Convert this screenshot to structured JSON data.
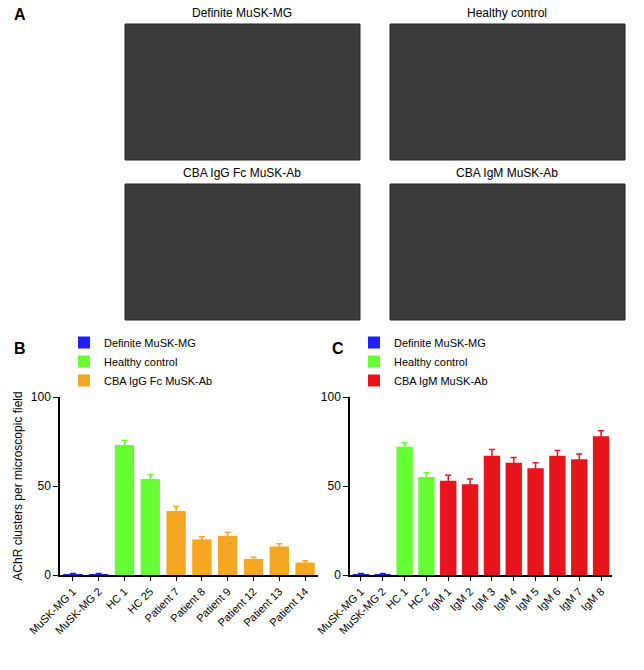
{
  "panel_a": {
    "label": "A",
    "images": [
      "Definite MuSK-MG",
      "Healthy control",
      "CBA IgG Fc MuSK-Ab",
      "CBA IgM MuSK-Ab"
    ]
  },
  "chart_data": [
    {
      "type": "bar",
      "annotations": [
        "B"
      ],
      "ylabel": "AChR clusters per microscopic field",
      "categories": [
        "MuSK-MG 1",
        "MuSK-MG 2",
        "HC 1",
        "HC 25",
        "Patient 7",
        "Patient 8",
        "Patient 9",
        "Patient 12",
        "Patient 13",
        "Patient 14"
      ],
      "series": [
        {
          "name": "Definite MuSK-MG",
          "color": "#1f1fff",
          "values": [
            0.5,
            0.5,
            null,
            null,
            null,
            null,
            null,
            null,
            null,
            null
          ],
          "errors": [
            0.3,
            0.3,
            null,
            null,
            null,
            null,
            null,
            null,
            null,
            null
          ]
        },
        {
          "name": "Healthy control",
          "color": "#66ff33",
          "values": [
            null,
            null,
            73,
            54,
            null,
            null,
            null,
            null,
            null,
            null
          ],
          "errors": [
            null,
            null,
            2.5,
            2.5,
            null,
            null,
            null,
            null,
            null,
            null
          ]
        },
        {
          "name": "CBA IgG Fc MuSK-Ab",
          "color": "#f5a623",
          "values": [
            null,
            null,
            null,
            null,
            36,
            20,
            22,
            9,
            16,
            7
          ],
          "errors": [
            null,
            null,
            null,
            null,
            2.5,
            1.5,
            2,
            1,
            1.5,
            1
          ]
        }
      ],
      "ylim": [
        0,
        100
      ],
      "yticks": [
        0,
        50,
        100
      ],
      "grid": false,
      "legend": "top left"
    },
    {
      "type": "bar",
      "annotations": [
        "C"
      ],
      "categories": [
        "MuSK-MG 1",
        "MuSK-MG 2",
        "HC 1",
        "HC 2",
        "IgM 1",
        "IgM 2",
        "IgM 3",
        "IgM 4",
        "IgM 5",
        "IgM 6",
        "IgM 7",
        "IgM 8"
      ],
      "series": [
        {
          "name": "Definite MuSK-MG",
          "color": "#1f1fff",
          "values": [
            0.5,
            0.5,
            null,
            null,
            null,
            null,
            null,
            null,
            null,
            null,
            null,
            null
          ],
          "errors": [
            0.3,
            0.3,
            null,
            null,
            null,
            null,
            null,
            null,
            null,
            null,
            null,
            null
          ]
        },
        {
          "name": "Healthy control",
          "color": "#66ff33",
          "values": [
            null,
            null,
            72,
            55,
            null,
            null,
            null,
            null,
            null,
            null,
            null,
            null
          ],
          "errors": [
            null,
            null,
            2.5,
            2.5,
            null,
            null,
            null,
            null,
            null,
            null,
            null,
            null
          ]
        },
        {
          "name": "CBA IgM MuSK-Ab",
          "color": "#e8141c",
          "values": [
            null,
            null,
            null,
            null,
            53,
            51,
            67,
            63,
            60,
            67,
            65,
            78
          ],
          "errors": [
            null,
            null,
            null,
            null,
            3,
            3,
            3.5,
            3,
            3,
            3,
            3,
            3
          ]
        }
      ],
      "ylim": [
        0,
        100
      ],
      "yticks": [
        0,
        50,
        100
      ],
      "grid": false,
      "legend": "top left"
    }
  ]
}
